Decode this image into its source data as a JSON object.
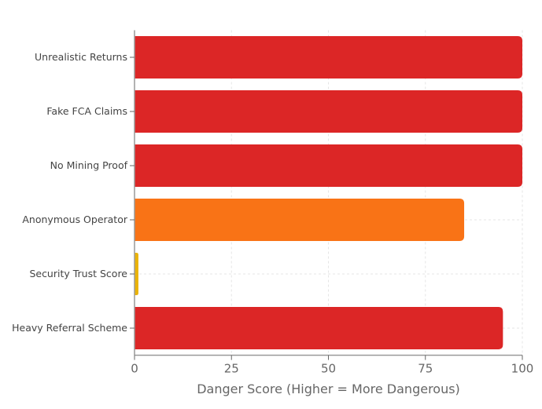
{
  "chart_data": {
    "type": "bar",
    "orientation": "horizontal",
    "categories": [
      "Unrealistic Returns",
      "Fake FCA Claims",
      "No Mining Proof",
      "Anonymous Operator",
      "Security Trust Score",
      "Heavy Referral Scheme"
    ],
    "values": [
      100,
      100,
      100,
      85,
      1,
      95
    ],
    "colors": [
      "#dc2626",
      "#dc2626",
      "#dc2626",
      "#f97316",
      "#eab308",
      "#dc2626"
    ],
    "xlabel": "Danger Score (Higher = More Dangerous)",
    "ylabel": "",
    "xlim": [
      0,
      100
    ],
    "xticks": [
      "0",
      "25",
      "50",
      "75",
      "100"
    ],
    "grid": true
  }
}
